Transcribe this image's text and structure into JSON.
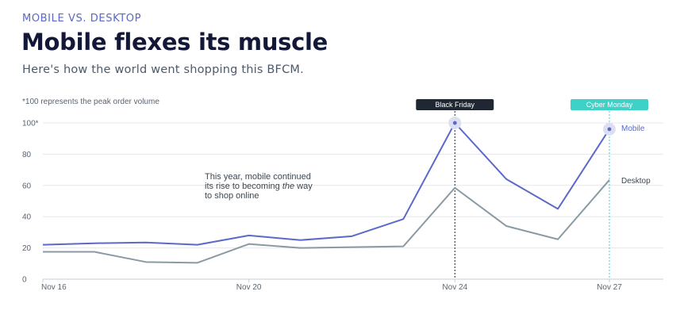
{
  "header": {
    "eyebrow": "MOBILE VS. DESKTOP",
    "title": "Mobile flexes its muscle",
    "subtitle": "Here's how the world went shopping this BFCM."
  },
  "colors": {
    "mobile": "#5b6ac9",
    "desktop": "#8a9aa4",
    "grid": "#e5e7ea",
    "axis_text": "#5b6470",
    "black_friday": "#1f2732",
    "cyber_monday": "#3ed1c8",
    "highlight": "#dcdff2"
  },
  "chart_data": {
    "type": "line",
    "note": "*100 represents the peak order volume",
    "x": [
      "Nov 16",
      "Nov 17",
      "Nov 18",
      "Nov 19",
      "Nov 20",
      "Nov 21",
      "Nov 22",
      "Nov 23",
      "Nov 24",
      "Nov 25",
      "Nov 26",
      "Nov 27"
    ],
    "xticks": [
      "Nov 16",
      "Nov 20",
      "Nov 24",
      "Nov 27"
    ],
    "ylim": [
      0,
      100
    ],
    "yticks": [
      "0",
      "20",
      "40",
      "60",
      "80",
      "100*"
    ],
    "grid": true,
    "series": [
      {
        "name": "Mobile",
        "values": [
          22,
          23,
          23.5,
          22,
          28,
          25,
          27.5,
          38.5,
          100,
          64,
          45,
          96
        ]
      },
      {
        "name": "Desktop",
        "values": [
          17.5,
          17.5,
          11,
          10.5,
          22.5,
          20,
          20.5,
          21,
          58.5,
          34,
          25.5,
          63.5
        ]
      }
    ],
    "annotation": {
      "lines": [
        "This year, mobile continued",
        "its rise to becoming ",
        "the",
        " way",
        "to shop online"
      ]
    },
    "events": [
      {
        "label": "Black Friday",
        "x": "Nov 24"
      },
      {
        "label": "Cyber Monday",
        "x": "Nov 27"
      }
    ]
  }
}
